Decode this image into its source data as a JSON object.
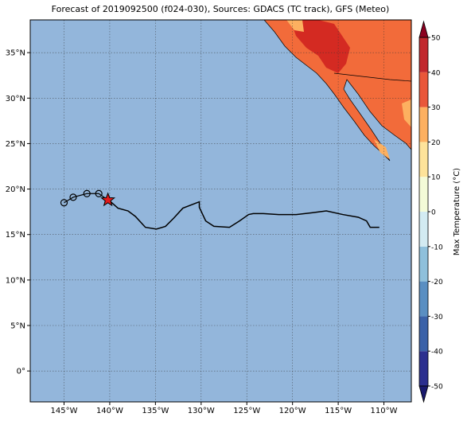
{
  "chart_data": {
    "type": "map",
    "title": "Forecast of 2019092500 (f024-030), Sources: GDACS (TC track), GFS (Meteo)",
    "xlim": [
      -148.7,
      -107.0
    ],
    "ylim": [
      -3.4,
      38.6
    ],
    "xticks": [
      {
        "value": -145,
        "label": "145°W"
      },
      {
        "value": -140,
        "label": "140°W"
      },
      {
        "value": -135,
        "label": "135°W"
      },
      {
        "value": -130,
        "label": "130°W"
      },
      {
        "value": -125,
        "label": "125°W"
      },
      {
        "value": -120,
        "label": "120°W"
      },
      {
        "value": -115,
        "label": "115°W"
      },
      {
        "value": -110,
        "label": "110°W"
      }
    ],
    "yticks": [
      {
        "value": 0,
        "label": "0°"
      },
      {
        "value": 5,
        "label": "5°N"
      },
      {
        "value": 10,
        "label": "10°N"
      },
      {
        "value": 15,
        "label": "15°N"
      },
      {
        "value": 20,
        "label": "20°N"
      },
      {
        "value": 25,
        "label": "25°N"
      },
      {
        "value": 30,
        "label": "30°N"
      },
      {
        "value": 35,
        "label": "35°N"
      }
    ],
    "grid": true,
    "ocean_color": "#93b6db",
    "past_track": {
      "x": [
        -145.0,
        -144.0,
        -142.5,
        -141.2
      ],
      "y": [
        18.5,
        19.1,
        19.5,
        19.5
      ]
    },
    "current_position": {
      "x": -140.2,
      "y": 18.8,
      "color": "#e31a1c"
    },
    "forecast_track": {
      "x": [
        -140.0,
        -139.1,
        -138.0,
        -137.2,
        -136.1,
        -134.9,
        -133.9,
        -133.0,
        -132.0,
        -130.2,
        -130.2,
        -129.5,
        -128.6,
        -126.9,
        -125.8,
        -124.8,
        -124.3,
        -123.2,
        -121.5,
        -119.6,
        -117.8,
        -116.3,
        -114.5,
        -112.8,
        -111.9,
        -111.5,
        -110.5
      ],
      "y": [
        18.7,
        17.9,
        17.6,
        17.0,
        15.8,
        15.6,
        15.9,
        16.8,
        17.9,
        18.6,
        18.0,
        16.5,
        15.9,
        15.8,
        16.5,
        17.2,
        17.3,
        17.3,
        17.2,
        17.2,
        17.4,
        17.6,
        17.2,
        16.9,
        16.5,
        15.8,
        15.8
      ]
    },
    "colorbar": {
      "label": "Max Temperature (°C)",
      "lim": [
        -50,
        50
      ],
      "ticks": [
        -50,
        -40,
        -30,
        -20,
        -10,
        0,
        10,
        20,
        30,
        40,
        50
      ],
      "colors": [
        "#2c2f8f",
        "#3b62a8",
        "#5a8fc2",
        "#8fc0db",
        "#d3ebf2",
        "#f4fbd8",
        "#fee39a",
        "#fdb060",
        "#e9573a",
        "#c1272d"
      ],
      "under": "#1a1a6e",
      "over": "#8b0020"
    }
  }
}
